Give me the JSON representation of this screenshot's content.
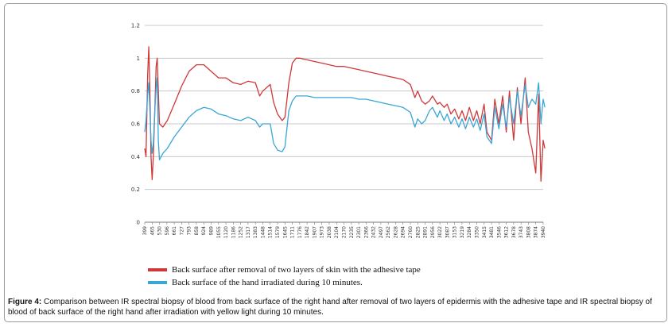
{
  "chart_data": {
    "type": "line",
    "title": "",
    "xlabel": "",
    "ylabel": "",
    "ylim": [
      0,
      1.2
    ],
    "yticks": [
      "0",
      "0.2",
      "0.4",
      "0.6",
      "0.8",
      "1",
      "1.2"
    ],
    "xticks": [
      "399",
      "465",
      "530",
      "596",
      "661",
      "727",
      "793",
      "858",
      "924",
      "989",
      "1055",
      "1120",
      "1186",
      "1252",
      "1317",
      "1383",
      "1448",
      "1514",
      "1579",
      "1645",
      "1711",
      "1776",
      "1842",
      "1907",
      "1973",
      "2038",
      "2104",
      "2170",
      "2235",
      "2301",
      "2366",
      "2432",
      "2497",
      "2562",
      "2628",
      "2694",
      "2760",
      "2825",
      "2891",
      "2956",
      "3022",
      "3087",
      "3153",
      "3219",
      "3284",
      "3350",
      "3415",
      "3481",
      "3546",
      "3612",
      "3678",
      "3743",
      "3808",
      "3874",
      "3940"
    ],
    "grid": "horizontal",
    "legend_position": "bottom",
    "series": [
      {
        "name": "Back surface after removal of two layers of skin with the adhesive tape",
        "color": "#d03838",
        "points": [
          [
            399,
            0.45
          ],
          [
            410,
            0.4
          ],
          [
            425,
            0.9
          ],
          [
            435,
            1.07
          ],
          [
            445,
            0.8
          ],
          [
            455,
            0.4
          ],
          [
            465,
            0.26
          ],
          [
            475,
            0.4
          ],
          [
            490,
            0.72
          ],
          [
            500,
            0.95
          ],
          [
            510,
            1.0
          ],
          [
            520,
            0.8
          ],
          [
            530,
            0.6
          ],
          [
            560,
            0.58
          ],
          [
            600,
            0.62
          ],
          [
            661,
            0.72
          ],
          [
            727,
            0.83
          ],
          [
            793,
            0.92
          ],
          [
            858,
            0.96
          ],
          [
            924,
            0.96
          ],
          [
            989,
            0.92
          ],
          [
            1055,
            0.88
          ],
          [
            1120,
            0.88
          ],
          [
            1186,
            0.85
          ],
          [
            1252,
            0.84
          ],
          [
            1317,
            0.86
          ],
          [
            1383,
            0.85
          ],
          [
            1420,
            0.77
          ],
          [
            1448,
            0.8
          ],
          [
            1514,
            0.84
          ],
          [
            1545,
            0.73
          ],
          [
            1579,
            0.66
          ],
          [
            1620,
            0.62
          ],
          [
            1645,
            0.64
          ],
          [
            1680,
            0.85
          ],
          [
            1711,
            0.97
          ],
          [
            1745,
            1.0
          ],
          [
            1776,
            1.0
          ],
          [
            1842,
            0.99
          ],
          [
            1907,
            0.98
          ],
          [
            1973,
            0.97
          ],
          [
            2038,
            0.96
          ],
          [
            2104,
            0.95
          ],
          [
            2170,
            0.95
          ],
          [
            2235,
            0.94
          ],
          [
            2301,
            0.93
          ],
          [
            2366,
            0.92
          ],
          [
            2432,
            0.91
          ],
          [
            2497,
            0.9
          ],
          [
            2562,
            0.89
          ],
          [
            2628,
            0.88
          ],
          [
            2694,
            0.87
          ],
          [
            2760,
            0.84
          ],
          [
            2800,
            0.76
          ],
          [
            2825,
            0.8
          ],
          [
            2860,
            0.74
          ],
          [
            2891,
            0.72
          ],
          [
            2930,
            0.74
          ],
          [
            2956,
            0.77
          ],
          [
            3000,
            0.72
          ],
          [
            3022,
            0.73
          ],
          [
            3060,
            0.7
          ],
          [
            3087,
            0.72
          ],
          [
            3120,
            0.66
          ],
          [
            3153,
            0.69
          ],
          [
            3190,
            0.63
          ],
          [
            3219,
            0.68
          ],
          [
            3250,
            0.62
          ],
          [
            3284,
            0.7
          ],
          [
            3320,
            0.62
          ],
          [
            3350,
            0.68
          ],
          [
            3380,
            0.6
          ],
          [
            3415,
            0.72
          ],
          [
            3440,
            0.55
          ],
          [
            3481,
            0.5
          ],
          [
            3510,
            0.75
          ],
          [
            3546,
            0.6
          ],
          [
            3580,
            0.77
          ],
          [
            3612,
            0.55
          ],
          [
            3640,
            0.8
          ],
          [
            3678,
            0.5
          ],
          [
            3710,
            0.82
          ],
          [
            3743,
            0.6
          ],
          [
            3780,
            0.88
          ],
          [
            3808,
            0.55
          ],
          [
            3840,
            0.45
          ],
          [
            3874,
            0.3
          ],
          [
            3900,
            0.78
          ],
          [
            3920,
            0.25
          ],
          [
            3940,
            0.5
          ],
          [
            3955,
            0.45
          ]
        ]
      },
      {
        "name": "Back surface of the hand irradiated during 10 minutes.",
        "color": "#3aa6d6",
        "points": [
          [
            399,
            0.55
          ],
          [
            410,
            0.62
          ],
          [
            425,
            0.78
          ],
          [
            435,
            0.85
          ],
          [
            445,
            0.68
          ],
          [
            455,
            0.5
          ],
          [
            465,
            0.42
          ],
          [
            475,
            0.48
          ],
          [
            490,
            0.7
          ],
          [
            500,
            0.82
          ],
          [
            510,
            0.88
          ],
          [
            520,
            0.5
          ],
          [
            530,
            0.38
          ],
          [
            560,
            0.42
          ],
          [
            600,
            0.45
          ],
          [
            661,
            0.52
          ],
          [
            727,
            0.58
          ],
          [
            793,
            0.64
          ],
          [
            858,
            0.68
          ],
          [
            924,
            0.7
          ],
          [
            989,
            0.69
          ],
          [
            1055,
            0.66
          ],
          [
            1120,
            0.65
          ],
          [
            1186,
            0.63
          ],
          [
            1252,
            0.62
          ],
          [
            1317,
            0.64
          ],
          [
            1383,
            0.62
          ],
          [
            1420,
            0.58
          ],
          [
            1448,
            0.6
          ],
          [
            1514,
            0.6
          ],
          [
            1545,
            0.48
          ],
          [
            1579,
            0.44
          ],
          [
            1620,
            0.43
          ],
          [
            1645,
            0.46
          ],
          [
            1680,
            0.68
          ],
          [
            1711,
            0.74
          ],
          [
            1745,
            0.77
          ],
          [
            1776,
            0.77
          ],
          [
            1842,
            0.77
          ],
          [
            1907,
            0.76
          ],
          [
            1973,
            0.76
          ],
          [
            2038,
            0.76
          ],
          [
            2104,
            0.76
          ],
          [
            2170,
            0.76
          ],
          [
            2235,
            0.76
          ],
          [
            2301,
            0.75
          ],
          [
            2366,
            0.75
          ],
          [
            2432,
            0.74
          ],
          [
            2497,
            0.73
          ],
          [
            2562,
            0.72
          ],
          [
            2628,
            0.71
          ],
          [
            2694,
            0.7
          ],
          [
            2760,
            0.67
          ],
          [
            2800,
            0.58
          ],
          [
            2825,
            0.63
          ],
          [
            2860,
            0.6
          ],
          [
            2891,
            0.62
          ],
          [
            2930,
            0.68
          ],
          [
            2956,
            0.7
          ],
          [
            3000,
            0.64
          ],
          [
            3022,
            0.68
          ],
          [
            3060,
            0.62
          ],
          [
            3087,
            0.66
          ],
          [
            3120,
            0.6
          ],
          [
            3153,
            0.64
          ],
          [
            3190,
            0.58
          ],
          [
            3219,
            0.63
          ],
          [
            3250,
            0.57
          ],
          [
            3284,
            0.64
          ],
          [
            3320,
            0.58
          ],
          [
            3350,
            0.63
          ],
          [
            3380,
            0.56
          ],
          [
            3415,
            0.66
          ],
          [
            3440,
            0.52
          ],
          [
            3481,
            0.48
          ],
          [
            3510,
            0.7
          ],
          [
            3546,
            0.57
          ],
          [
            3580,
            0.72
          ],
          [
            3612,
            0.58
          ],
          [
            3640,
            0.76
          ],
          [
            3678,
            0.6
          ],
          [
            3710,
            0.8
          ],
          [
            3743,
            0.65
          ],
          [
            3780,
            0.84
          ],
          [
            3808,
            0.7
          ],
          [
            3840,
            0.75
          ],
          [
            3874,
            0.72
          ],
          [
            3900,
            0.85
          ],
          [
            3920,
            0.6
          ],
          [
            3940,
            0.75
          ],
          [
            3955,
            0.7
          ]
        ]
      }
    ]
  },
  "caption": {
    "label": "Figure 4:",
    "text": "Comparison between IR spectral biopsy of blood from back surface of the right hand after removal of two layers of epidermis with the adhesive tape and IR spectral biopsy of blood of back surface of the right hand after irradiation with yellow light during 10 minutes."
  }
}
